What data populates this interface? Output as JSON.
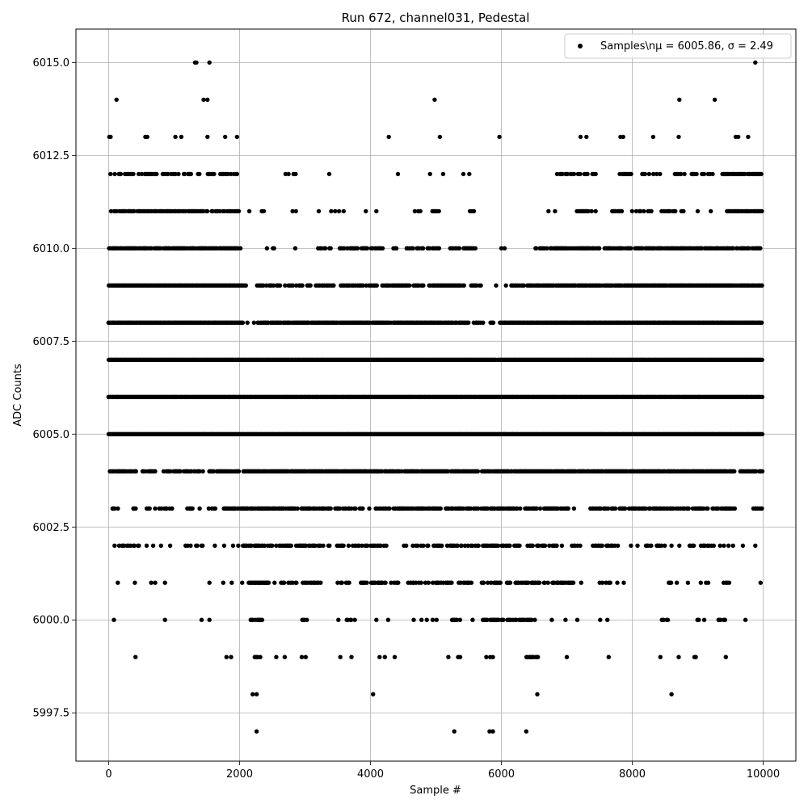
{
  "chart_data": {
    "type": "scatter",
    "title": "Run 672, channel031, Pedestal",
    "xlabel": "Sample #",
    "ylabel": "ADC Counts",
    "xlim": [
      -500,
      10500
    ],
    "ylim": [
      5996.2,
      6015.9
    ],
    "xticks": [
      0,
      2000,
      4000,
      6000,
      8000,
      10000
    ],
    "xtick_labels": [
      "0",
      "2000",
      "4000",
      "6000",
      "8000",
      "10000"
    ],
    "yticks": [
      5997.5,
      6000.0,
      6002.5,
      6005.0,
      6007.5,
      6010.0,
      6012.5,
      6015.0
    ],
    "ytick_labels": [
      "5997.5",
      "6000.0",
      "6002.5",
      "6005.0",
      "6007.5",
      "6010.0",
      "6012.5",
      "6015.0"
    ],
    "grid": true,
    "legend_position": "top-right",
    "marker_color": "#000000",
    "series": [
      {
        "name": "Samples\\nμ = 6005.86, σ = 2.49",
        "levels": [
          {
            "y": 6015,
            "x": [
              1320,
              1340,
              1540,
              9880
            ]
          },
          {
            "y": 6014,
            "x": [
              120,
              1450,
              1510,
              4980,
              8720,
              9260
            ]
          },
          {
            "y": 6013,
            "x": [
              10,
              30,
              560,
              590,
              1020,
              1110,
              1510,
              1780,
              1960,
              4280,
              5060,
              5970,
              7210,
              7300,
              7820,
              7860,
              8320,
              8710,
              9580,
              9620,
              9770
            ]
          },
          {
            "y": 6012,
            "x": [
              [
                10,
                2000,
                0.45
              ],
              [
                2700,
                2900,
                0.3
              ],
              3370,
              4420,
              4910,
              5110,
              5420,
              5510,
              [
                6850,
                7500,
                0.5
              ],
              [
                7790,
                8000,
                0.5
              ],
              [
                8150,
                8450,
                0.5
              ],
              [
                8650,
                9000,
                0.6
              ],
              [
                9050,
                9250,
                0.5
              ],
              [
                9380,
                9980,
                0.8
              ]
            ]
          },
          {
            "y": 6011,
            "x": [
              [
                20,
                2000,
                0.7
              ],
              2150,
              2340,
              2370,
              2810,
              2860,
              3210,
              3400,
              3460,
              3520,
              3590,
              3930,
              4090,
              [
                4680,
                4760,
                0.5
              ],
              [
                4900,
                5050,
                0.6
              ],
              5520,
              5550,
              5580,
              6720,
              6820,
              [
                7150,
                7450,
                0.6
              ],
              [
                7650,
                7850,
                0.6
              ],
              [
                8000,
                8300,
                0.5
              ],
              [
                8450,
                8800,
                0.6
              ],
              9000,
              9200,
              [
                9450,
                9990,
                0.8
              ]
            ]
          },
          {
            "y": 6010,
            "x": [
              [
                10,
                2050,
                0.85
              ],
              [
                2400,
                2550,
                0.4
              ],
              2850,
              [
                3200,
                3400,
                0.5
              ],
              [
                3500,
                4200,
                0.55
              ],
              [
                4300,
                4400,
                0.5
              ],
              [
                4550,
                5050,
                0.6
              ],
              [
                5200,
                5600,
                0.6
              ],
              6000,
              6050,
              [
                6520,
                9990,
                0.75
              ]
            ]
          },
          {
            "y": 6009,
            "x": [
              [
                0,
                2100,
                1
              ],
              [
                2200,
                2700,
                0.6
              ],
              [
                2750,
                3100,
                0.6
              ],
              [
                3150,
                3500,
                0.5
              ],
              [
                3550,
                4100,
                0.7
              ],
              [
                4180,
                4850,
                0.75
              ],
              [
                4900,
                5450,
                0.85
              ],
              [
                5480,
                5700,
                0.6
              ],
              5920,
              6070,
              [
                6150,
                6350,
                0.5
              ],
              [
                6400,
                9990,
                0.95
              ]
            ]
          },
          {
            "y": 6008,
            "x": [
              [
                0,
                2050,
                1
              ],
              2120,
              2220,
              [
                2280,
                5500,
                0.95
              ],
              [
                5560,
                5730,
                0.6
              ],
              [
                5800,
                5900,
                0.5
              ],
              [
                5980,
                9990,
                1
              ]
            ]
          },
          {
            "y": 6007,
            "x": [
              [
                0,
                5930,
                1
              ],
              [
                5950,
                9990,
                1
              ]
            ]
          },
          {
            "y": 6006,
            "x": [
              [
                0,
                9990,
                1
              ]
            ]
          },
          {
            "y": 6005,
            "x": [
              [
                0,
                9990,
                1
              ]
            ]
          },
          {
            "y": 6004,
            "x": [
              [
                20,
                420,
                0.85
              ],
              [
                500,
                720,
                0.6
              ],
              [
                820,
                1100,
                0.7
              ],
              [
                1150,
                1450,
                0.7
              ],
              [
                1540,
                2000,
                0.8
              ],
              [
                2060,
                5650,
                0.9
              ],
              [
                5700,
                9570,
                0.9
              ],
              [
                9650,
                9990,
                0.8
              ]
            ]
          },
          {
            "y": 6003,
            "x": [
              [
                60,
                200,
                0.5
              ],
              [
                380,
                450,
                0.5
              ],
              [
                580,
                1000,
                0.45
              ],
              [
                1200,
                1290,
                0.4
              ],
              1390,
              [
                1530,
                1650,
                0.4
              ],
              [
                1760,
                3400,
                0.7
              ],
              [
                3450,
                4000,
                0.6
              ],
              [
                4080,
                5100,
                0.65
              ],
              [
                5150,
                6300,
                0.7
              ],
              [
                6350,
                7030,
                0.7
              ],
              7110,
              [
                7360,
                9600,
                0.6
              ],
              [
                9850,
                9990,
                0.6
              ]
            ]
          },
          {
            "y": 6002,
            "x": [
              [
                60,
                520,
                0.35
              ],
              580,
              680,
              800,
              940,
              [
                1160,
                1460,
                0.4
              ],
              [
                1560,
                1800,
                0.35
              ],
              1900,
              1980,
              [
                2050,
                3400,
                0.65
              ],
              [
                3490,
                4300,
                0.55
              ],
              [
                4500,
                5100,
                0.45
              ],
              [
                5170,
                5650,
                0.55
              ],
              [
                5700,
                6300,
                0.7
              ],
              [
                6350,
                7000,
                0.55
              ],
              [
                7080,
                7250,
                0.5
              ],
              [
                7400,
                7800,
                0.55
              ],
              7980,
              8080,
              [
                8180,
                8500,
                0.5
              ],
              8600,
              8720,
              [
                8860,
                9350,
                0.6
              ],
              9400,
              9470,
              9540,
              9690,
              9880
            ]
          },
          {
            "y": 6001,
            "x": [
              140,
              400,
              650,
              710,
              860,
              1540,
              1750,
              1880,
              2040,
              [
                2140,
                2450,
                0.8
              ],
              [
                2520,
                2900,
                0.55
              ],
              [
                2950,
                3250,
                0.5
              ],
              [
                3420,
                3700,
                0.5
              ],
              [
                3850,
                4450,
                0.55
              ],
              [
                4580,
                4900,
                0.4
              ],
              [
                4950,
                5250,
                0.55
              ],
              [
                5300,
                5550,
                0.5
              ],
              [
                5700,
                6150,
                0.65
              ],
              [
                6200,
                6600,
                0.6
              ],
              [
                6650,
                7100,
                0.5
              ],
              7220,
              [
                7500,
                7800,
                0.4
              ],
              7870,
              [
                8400,
                8600,
                0.4
              ],
              8680,
              8850,
              [
                9050,
                9200,
                0.4
              ],
              [
                9400,
                9500,
                0.5
              ],
              9960
            ]
          },
          {
            "y": 6000,
            "x": [
              80,
              860,
              1420,
              1540,
              [
                2170,
                2350,
                0.8
              ],
              [
                2960,
                3050,
                0.5
              ],
              3510,
              [
                3610,
                3720,
                0.5
              ],
              3760,
              4090,
              4270,
              4660,
              4780,
              4860,
              4950,
              5010,
              [
                5180,
                5380,
                0.6
              ],
              5560,
              [
                5720,
                5980,
                0.7
              ],
              [
                6000,
                6600,
                0.5
              ],
              6770,
              6980,
              7160,
              7510,
              7620,
              [
                8450,
                8550,
                0.8
              ],
              [
                8980,
                9050,
                0.6
              ],
              9100,
              [
                9320,
                9420,
                0.6
              ],
              9730
            ]
          },
          {
            "y": 5999,
            "x": [
              410,
              1800,
              1870,
              [
                2200,
                2320,
                0.8
              ],
              2560,
              2690,
              2950,
              3010,
              3540,
              3710,
              4140,
              4220,
              4370,
              5190,
              5340,
              5370,
              5770,
              5830,
              5870,
              [
                6380,
                6560,
                0.8
              ],
              7000,
              7640,
              8430,
              8710,
              8950,
              8970,
              9430
            ]
          },
          {
            "y": 5998,
            "x": [
              2200,
              2260,
              4040,
              6550,
              8600
            ]
          },
          {
            "y": 5997,
            "x": [
              2260,
              5280,
              5820,
              5870,
              6380
            ]
          }
        ]
      }
    ]
  }
}
